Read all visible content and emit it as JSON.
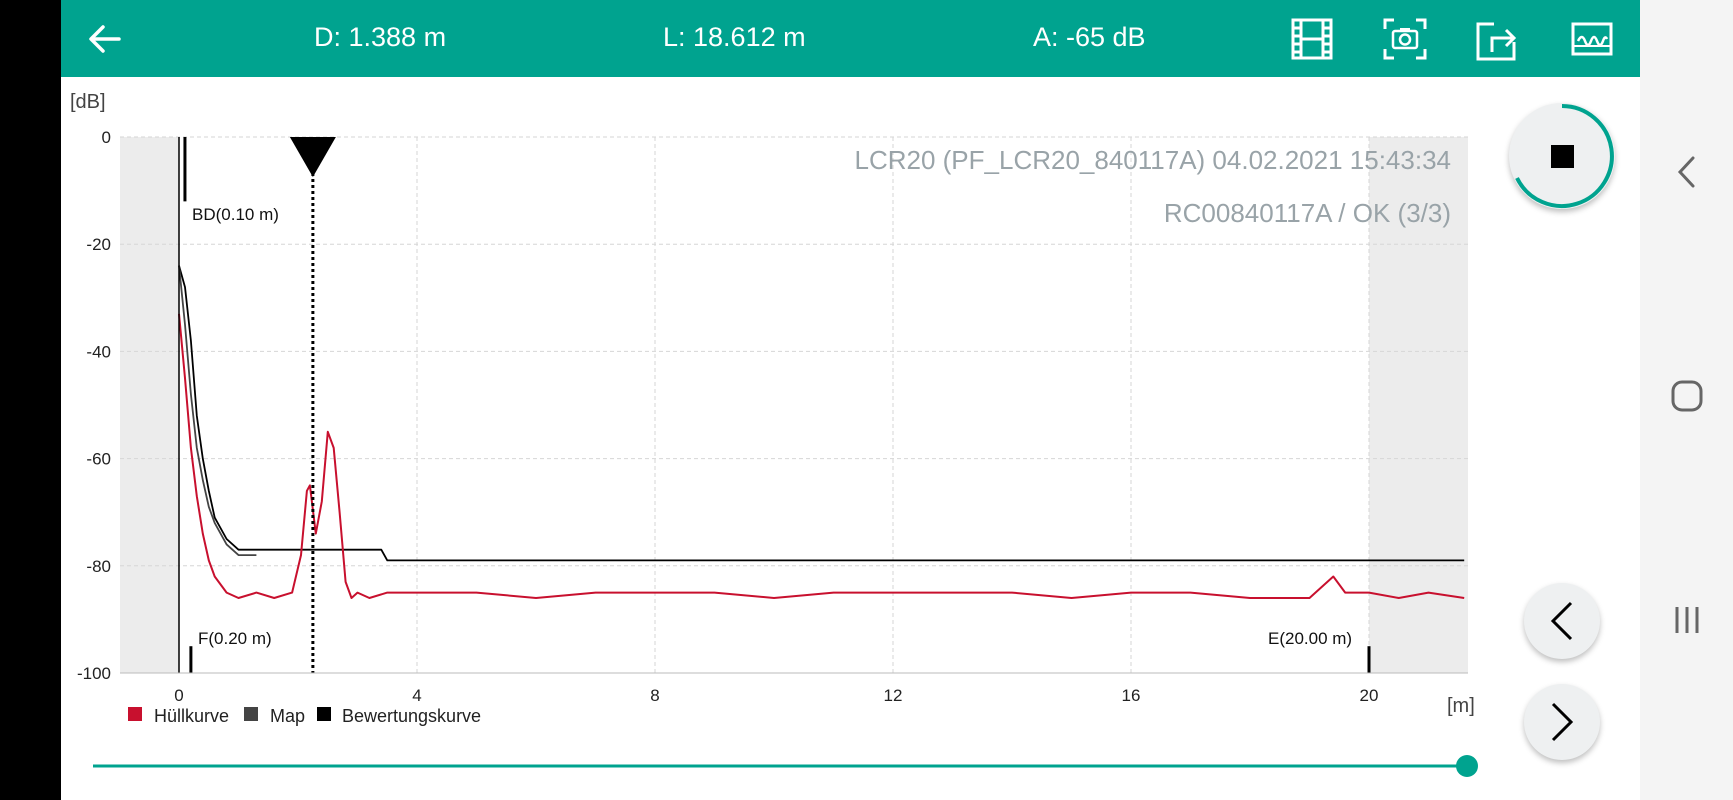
{
  "topbar": {
    "back_icon": "arrow-left-icon",
    "distance": "D: 1.388 m",
    "level": "L: 18.612 m",
    "amplitude": "A: -65 dB",
    "icons": [
      "film-icon",
      "camera-icon",
      "export-icon",
      "tank-icon"
    ]
  },
  "colors": {
    "accent": "#00a38f",
    "envelope": "#c8102e",
    "map": "#333333",
    "evaluation": "#000000"
  },
  "chart_info": {
    "line1": "LCR20 (PF_LCR20_840117A) 04.02.2021 15:43:34",
    "line2": "RC00840117A / OK (3/3)"
  },
  "markers": {
    "blocking_distance": "BD(0.10 m)",
    "full": "F(0.20 m)",
    "empty": "E(20.00 m)"
  },
  "axis": {
    "y_unit": "[dB]",
    "x_unit": "[m]"
  },
  "legend": [
    {
      "label": "Hüllkurve",
      "color": "#c8102e"
    },
    {
      "label": "Map",
      "color": "#444444"
    },
    {
      "label": "Bewertungskurve",
      "color": "#000000"
    }
  ],
  "slider": {
    "value": 1.0
  },
  "controls": {
    "stop_icon": "stop-icon",
    "prev_icon": "chevron-left-icon",
    "next_icon": "chevron-right-icon"
  },
  "system_nav": [
    "back-nav-icon",
    "home-nav-icon",
    "recents-nav-icon"
  ],
  "chart_data": {
    "type": "line",
    "xlabel": "[m]",
    "ylabel": "[dB]",
    "xlim": [
      -1,
      21.7
    ],
    "ylim": [
      -100,
      0
    ],
    "x_ticks": [
      "0",
      "4",
      "8",
      "12",
      "16",
      "20"
    ],
    "y_ticks": [
      "0",
      "-20",
      "-40",
      "-60",
      "-80",
      "-100"
    ],
    "grid": true,
    "shaded_regions": [
      [
        -1,
        0
      ],
      [
        20,
        21.7
      ]
    ],
    "echo_marker_x": 2.25,
    "marker_positions": {
      "blocking_distance": 0.1,
      "full": 0.2,
      "empty": 20.0
    },
    "series": [
      {
        "name": "Hüllkurve",
        "color": "#c8102e",
        "x": [
          0,
          0.1,
          0.2,
          0.3,
          0.4,
          0.5,
          0.6,
          0.8,
          1.0,
          1.3,
          1.6,
          1.9,
          2.05,
          2.15,
          2.2,
          2.3,
          2.4,
          2.5,
          2.6,
          2.7,
          2.8,
          2.9,
          3.0,
          3.2,
          3.5,
          4,
          5,
          6,
          7,
          8,
          9,
          10,
          11,
          12,
          13,
          14,
          15,
          16,
          17,
          18,
          19,
          19.4,
          19.6,
          20,
          20.5,
          21,
          21.6
        ],
        "y": [
          -33,
          -45,
          -58,
          -67,
          -74,
          -79,
          -82,
          -85,
          -86,
          -85,
          -86,
          -85,
          -78,
          -66,
          -65,
          -74,
          -68,
          -55,
          -58,
          -70,
          -83,
          -86,
          -85,
          -86,
          -85,
          -85,
          -85,
          -86,
          -85,
          -85,
          -85,
          -86,
          -85,
          -85,
          -85,
          -85,
          -86,
          -85,
          -85,
          -86,
          -86,
          -82,
          -85,
          -85,
          -86,
          -85,
          -86
        ]
      },
      {
        "name": "Map",
        "color": "#444444",
        "x": [
          0,
          0.1,
          0.2,
          0.3,
          0.4,
          0.5,
          0.6,
          0.8,
          1.0,
          1.3
        ],
        "y": [
          -24,
          -35,
          -48,
          -58,
          -64,
          -69,
          -72,
          -76,
          -78,
          -78
        ]
      },
      {
        "name": "Bewertungskurve",
        "color": "#000000",
        "x": [
          0,
          0.1,
          0.2,
          0.3,
          0.4,
          0.5,
          0.6,
          0.8,
          1.0,
          1.5,
          2,
          2.5,
          3.0,
          3.4,
          3.5,
          10,
          20,
          21.6
        ],
        "y": [
          -24,
          -28,
          -38,
          -52,
          -60,
          -66,
          -71,
          -75,
          -77,
          -77,
          -77,
          -77,
          -77,
          -77,
          -79,
          -79,
          -79,
          -79
        ]
      }
    ]
  }
}
